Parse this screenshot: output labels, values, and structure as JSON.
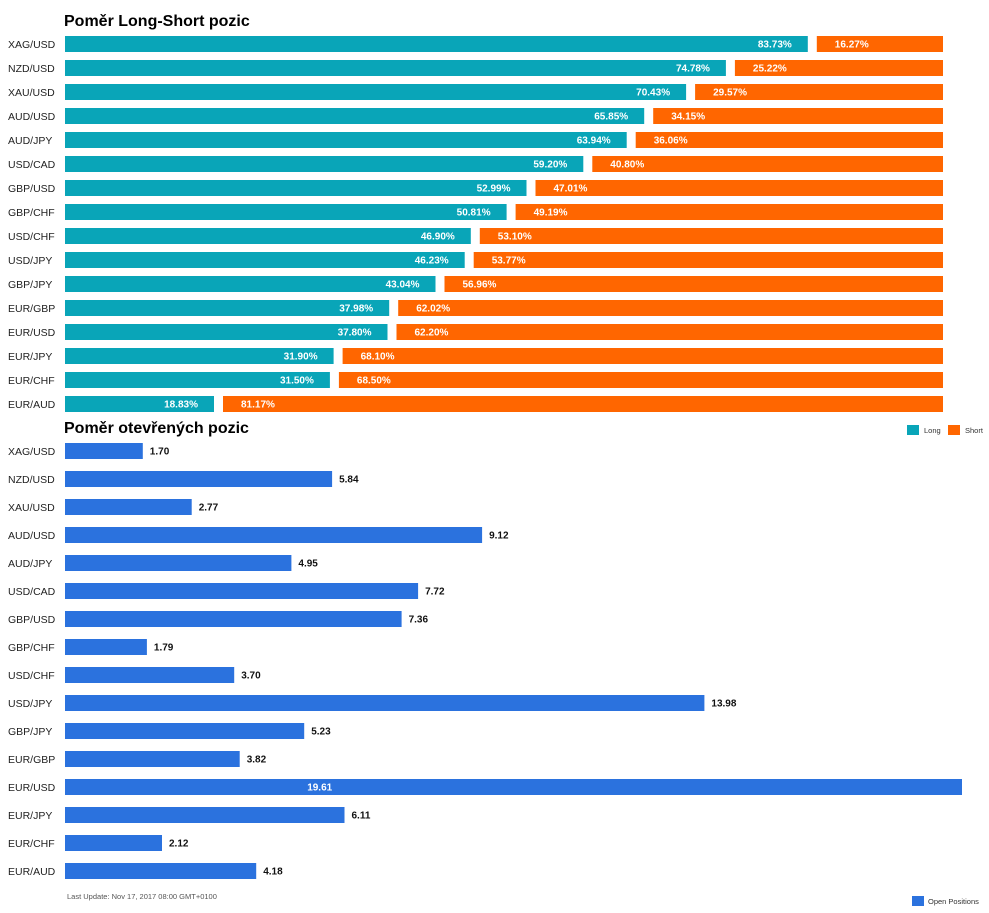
{
  "footer": {
    "last_update": "Last Update: Nov 17, 2017 08:00 GMT+0100"
  },
  "chart_data": [
    {
      "type": "bar",
      "orientation": "horizontal",
      "stacked": true,
      "title": "Poměr Long-Short pozic",
      "categories": [
        "XAG/USD",
        "NZD/USD",
        "XAU/USD",
        "AUD/USD",
        "AUD/JPY",
        "USD/CAD",
        "GBP/USD",
        "GBP/CHF",
        "USD/CHF",
        "USD/JPY",
        "GBP/JPY",
        "EUR/GBP",
        "EUR/USD",
        "EUR/JPY",
        "EUR/CHF",
        "EUR/AUD"
      ],
      "series": [
        {
          "name": "Long",
          "color": "#09a5b8",
          "values": [
            83.73,
            74.78,
            70.43,
            65.85,
            63.94,
            59.2,
            52.99,
            50.81,
            46.9,
            46.23,
            43.04,
            37.98,
            37.8,
            31.9,
            31.5,
            18.83
          ]
        },
        {
          "name": "Short",
          "color": "#ff6600",
          "values": [
            16.27,
            25.22,
            29.57,
            34.15,
            36.06,
            40.8,
            47.01,
            49.19,
            53.1,
            53.77,
            56.96,
            62.02,
            62.2,
            68.1,
            68.5,
            81.17
          ]
        }
      ],
      "value_suffix": "%",
      "legend_position": "bottom-right",
      "grid": false
    },
    {
      "type": "bar",
      "orientation": "horizontal",
      "title": "Poměr otevřených pozic",
      "categories": [
        "XAG/USD",
        "NZD/USD",
        "XAU/USD",
        "AUD/USD",
        "AUD/JPY",
        "USD/CAD",
        "GBP/USD",
        "GBP/CHF",
        "USD/CHF",
        "USD/JPY",
        "GBP/JPY",
        "EUR/GBP",
        "EUR/USD",
        "EUR/JPY",
        "EUR/CHF",
        "EUR/AUD"
      ],
      "series": [
        {
          "name": "Open Positions",
          "color": "#2b72de",
          "values": [
            1.7,
            5.84,
            2.77,
            9.12,
            4.95,
            7.72,
            7.36,
            1.79,
            3.7,
            13.98,
            5.23,
            3.82,
            19.61,
            6.11,
            2.12,
            4.18
          ]
        }
      ],
      "legend_position": "bottom-right",
      "grid": false
    }
  ]
}
